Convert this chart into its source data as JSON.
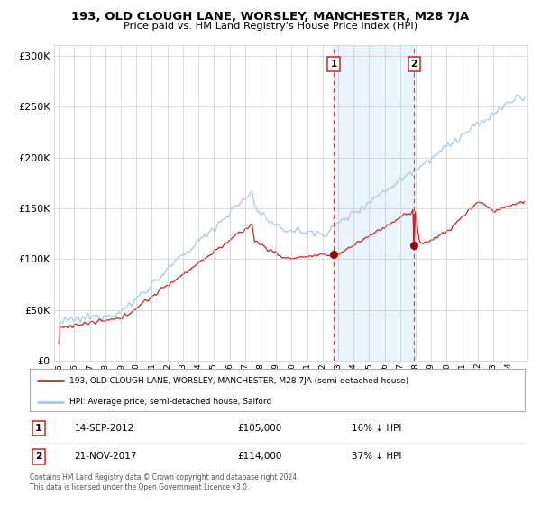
{
  "title": "193, OLD CLOUGH LANE, WORSLEY, MANCHESTER, M28 7JA",
  "subtitle": "Price paid vs. HM Land Registry's House Price Index (HPI)",
  "legend_line1": "193, OLD CLOUGH LANE, WORSLEY, MANCHESTER, M28 7JA (semi-detached house)",
  "legend_line2": "HPI: Average price, semi-detached house, Salford",
  "annotation1_date": "14-SEP-2012",
  "annotation1_price": 105000,
  "annotation1_hpi": "16% ↓ HPI",
  "annotation2_date": "21-NOV-2017",
  "annotation2_price": 114000,
  "annotation2_hpi": "37% ↓ HPI",
  "footnote": "Contains HM Land Registry data © Crown copyright and database right 2024.\nThis data is licensed under the Open Government Licence v3.0.",
  "hpi_color": "#a8c8e8",
  "price_color": "#cc2222",
  "marker_color": "#990000",
  "drop_line_color": "#cc2222",
  "background_color": "#ffffff",
  "grid_color": "#cccccc",
  "shade_color": "#ddeeff",
  "ylim": [
    0,
    310000
  ],
  "yticks": [
    0,
    50000,
    100000,
    150000,
    200000,
    250000,
    300000
  ],
  "sale1_year": 2012.71,
  "sale2_year": 2017.89,
  "sale1_price": 105000,
  "sale2_price": 114000
}
